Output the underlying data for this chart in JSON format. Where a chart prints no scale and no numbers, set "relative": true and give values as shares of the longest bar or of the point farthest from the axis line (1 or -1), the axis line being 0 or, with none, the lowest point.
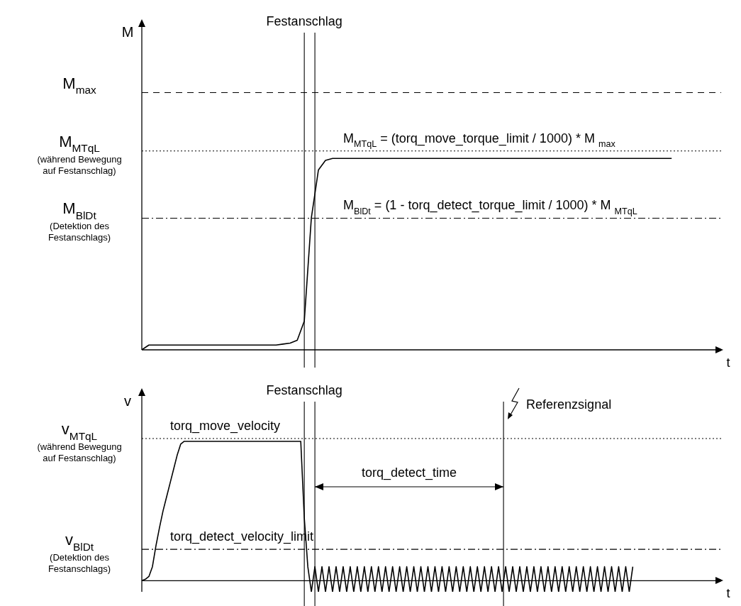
{
  "chart_data": [
    {
      "type": "line",
      "relative": true,
      "xlabel": "t",
      "ylabel": "M",
      "categories": [
        null,
        null,
        null,
        null,
        null,
        null,
        null,
        null,
        null,
        null,
        null,
        null,
        null,
        null,
        null,
        null,
        null,
        null,
        null,
        null,
        null,
        null,
        null,
        null,
        null,
        null,
        null,
        null,
        null,
        null,
        null,
        null,
        null,
        null,
        null,
        null,
        null,
        null,
        null,
        null,
        null,
        null,
        null,
        null,
        null,
        null,
        null,
        null,
        null,
        null,
        null,
        null,
        null,
        null,
        null,
        null,
        null,
        null,
        null,
        null,
        null,
        null,
        null,
        null,
        null,
        null,
        null,
        null,
        null,
        null,
        null,
        null,
        null,
        null,
        null,
        null,
        null,
        null,
        null,
        null,
        null
      ],
      "series": [
        {
          "color": "#000000",
          "values": [
            0,
            0.025,
            0.025,
            0.025,
            0.025,
            0.025,
            0.025,
            0.025,
            0.025,
            0.025,
            0.025,
            0.025,
            0.025,
            0.025,
            0.025,
            0.025,
            0.025,
            0.025,
            0.025,
            0.025,
            0.03,
            0.035,
            0.05,
            0.15,
            0.69,
            0.94,
            0.99,
            1,
            1,
            1,
            1,
            1,
            1,
            1,
            1,
            1,
            1,
            1,
            1,
            1,
            1,
            1,
            1,
            1,
            1,
            1,
            1,
            1,
            1,
            1,
            1,
            1,
            1,
            1,
            1,
            1,
            1,
            1,
            1,
            1,
            1,
            1,
            1,
            1,
            1,
            1,
            1,
            1,
            1,
            1,
            1,
            1,
            1,
            1,
            1,
            1,
            null,
            null,
            null,
            null,
            null
          ]
        }
      ],
      "ref_lines": [
        {
          "axis": "y",
          "value": 1.344,
          "label": "M$_{max}$",
          "line_style": "dashed"
        },
        {
          "axis": "y",
          "value": 1.039,
          "label": "M$_{MTqL}$\n(während Bewegung\nauf Festanschlag)",
          "line_style": "dotted"
        },
        {
          "axis": "y",
          "value": 0.688,
          "label": "M$_{BlDt}$\n(Detektion des\nFestanschlags)",
          "line_style": "dashdot"
        }
      ],
      "annotations": [
        "Festanschlag",
        {
          "text": "M$_{MTqL}$ = (torq_move_torque_limit / 1000) * M $_{max}$",
          "y": 1.039
        },
        {
          "text": "M$_{BlDt}$ = (1 - torq_detect_torque_limit / 1000) * M $_{MTqL}$",
          "y": 0.688
        }
      ]
    },
    {
      "type": "line",
      "relative": true,
      "xlabel": "t",
      "ylabel": "v",
      "categories": [
        null,
        null,
        null,
        null,
        null,
        null,
        null,
        null,
        null,
        null,
        null,
        null,
        null,
        null,
        null,
        null,
        null,
        null,
        null,
        null,
        null,
        null,
        null,
        null,
        null,
        null,
        null,
        null,
        null,
        null,
        null,
        null,
        null,
        null,
        null,
        null,
        null,
        null,
        null,
        null,
        null,
        null,
        null,
        null,
        null,
        null,
        null,
        null,
        null,
        null,
        null,
        null,
        null,
        null,
        null,
        null,
        null,
        null,
        null,
        null,
        null,
        null,
        null,
        null,
        null,
        null,
        null,
        null,
        null,
        null,
        null,
        null,
        null,
        null,
        null,
        null,
        null,
        null,
        null,
        null,
        null,
        null,
        null,
        null,
        null,
        null,
        null,
        null,
        null,
        null,
        null,
        null,
        null,
        null,
        null,
        null,
        null,
        null,
        null,
        null,
        null,
        null,
        null,
        null,
        null,
        null,
        null,
        null,
        null,
        null,
        null,
        null,
        null,
        null,
        null,
        null,
        null,
        null,
        null,
        null,
        null,
        null,
        null,
        null,
        null,
        null,
        null,
        null,
        null,
        null,
        null,
        null,
        null,
        null,
        null,
        null,
        null,
        null,
        null,
        null,
        null,
        null,
        null,
        null,
        null,
        null,
        null,
        null,
        null,
        null,
        null,
        null,
        null,
        null,
        null,
        null,
        null,
        null,
        null,
        null,
        null
      ],
      "series": [
        {
          "color": "#000000",
          "values": [
            0,
            0.01,
            0.03,
            0.1,
            0.25,
            0.38,
            0.5,
            0.6,
            0.7,
            0.8,
            0.9,
            0.98,
            1,
            1,
            1,
            1,
            1,
            1,
            1,
            1,
            1,
            1,
            1,
            1,
            1,
            1,
            1,
            1,
            1,
            1,
            1,
            1,
            1,
            1,
            1,
            1,
            1,
            1,
            1,
            1,
            1,
            1,
            1,
            1,
            1,
            1,
            0.45,
            0.1,
            -0.08,
            0.1,
            -0.08,
            0.1,
            -0.08,
            0.1,
            -0.08,
            0.1,
            -0.08,
            0.1,
            -0.08,
            0.1,
            -0.08,
            0.1,
            -0.08,
            0.1,
            -0.08,
            0.1,
            -0.08,
            0.1,
            -0.08,
            0.1,
            -0.08,
            0.1,
            -0.08,
            0.1,
            -0.08,
            0.1,
            -0.08,
            0.1,
            -0.08,
            0.1,
            -0.08,
            0.1,
            -0.08,
            0.1,
            -0.08,
            0.1,
            -0.08,
            0.1,
            -0.08,
            0.1,
            -0.08,
            0.1,
            -0.08,
            0.1,
            -0.08,
            0.1,
            -0.08,
            0.1,
            -0.08,
            0.1,
            -0.08,
            0.1,
            -0.08,
            0.1,
            -0.08,
            0.1,
            -0.08,
            0.1,
            -0.08,
            0.1,
            -0.08,
            0.1,
            -0.08,
            0.1,
            -0.08,
            0.1,
            -0.08,
            0.1,
            -0.08,
            0.1,
            -0.08,
            0.1,
            -0.08,
            0.1,
            -0.08,
            0.1,
            -0.08,
            0.1,
            -0.08,
            0.1,
            -0.08,
            0.1,
            -0.08,
            0.1,
            -0.08,
            0.1,
            -0.08,
            0.1,
            -0.08,
            0.1,
            null,
            null,
            null,
            null,
            null,
            null,
            null,
            null,
            null,
            null,
            null,
            null,
            null,
            null,
            null,
            null,
            null,
            null,
            null,
            null,
            null
          ]
        }
      ],
      "ref_lines": [
        {
          "axis": "y",
          "value": 1.02,
          "label": "v$_{MTqL}$\n(während Bewegung\nauf Festanschlag)",
          "line_style": "dotted"
        },
        {
          "axis": "y",
          "value": 0.225,
          "label": "v$_{BlDt}$\n(Detektion des\nFestanschlags)",
          "line_style": "dashdot"
        }
      ],
      "annotations": [
        "Festanschlag",
        "Referenzsignal",
        "torq_detect_time",
        {
          "text": "torq_move_velocity",
          "y": 1.02
        },
        {
          "text": "torq_detect_velocity_limit",
          "y": 0.225
        }
      ]
    }
  ]
}
